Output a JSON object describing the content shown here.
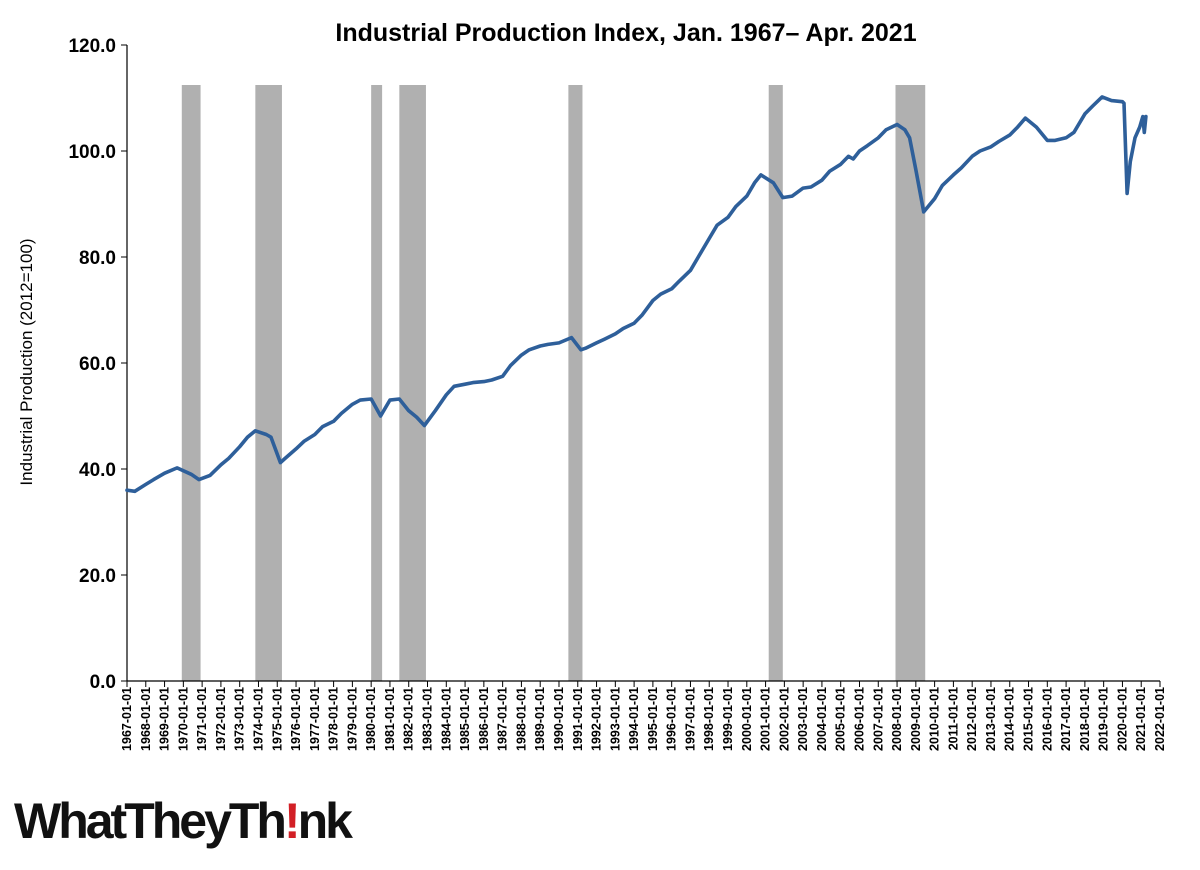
{
  "logo": {
    "before": "WhatTheyTh",
    "bang": "!",
    "after": "nk",
    "colors": {
      "text": "#111111",
      "accent": "#d21f26"
    }
  },
  "chart_data": {
    "type": "line",
    "title": "Industrial Production Index, Jan. 1967– Apr. 2021",
    "ylabel": "Industrial Production (2012=100)",
    "xlabel": "",
    "ylim": [
      0,
      120
    ],
    "xlim": [
      1967,
      2022
    ],
    "y_ticks": [
      "0.0",
      "20.0",
      "40.0",
      "60.0",
      "80.0",
      "100.0",
      "120.0"
    ],
    "x_ticks": [
      "1967-01-01",
      "1968-01-01",
      "1969-01-01",
      "1970-01-01",
      "1971-01-01",
      "1972-01-01",
      "1973-01-01",
      "1974-01-01",
      "1975-01-01",
      "1976-01-01",
      "1977-01-01",
      "1978-01-01",
      "1979-01-01",
      "1980-01-01",
      "1981-01-01",
      "1982-01-01",
      "1983-01-01",
      "1984-01-01",
      "1985-01-01",
      "1986-01-01",
      "1987-01-01",
      "1988-01-01",
      "1989-01-01",
      "1990-01-01",
      "1991-01-01",
      "1992-01-01",
      "1993-01-01",
      "1994-01-01",
      "1995-01-01",
      "1996-01-01",
      "1997-01-01",
      "1998-01-01",
      "1999-01-01",
      "2000-01-01",
      "2001-01-01",
      "2002-01-01",
      "2003-01-01",
      "2004-01-01",
      "2005-01-01",
      "2006-01-01",
      "2007-01-01",
      "2008-01-01",
      "2009-01-01",
      "2010-01-01",
      "2011-01-01",
      "2012-01-01",
      "2013-01-01",
      "2014-01-01",
      "2015-01-01",
      "2016-01-01",
      "2017-01-01",
      "2018-01-01",
      "2019-01-01",
      "2020-01-01",
      "2021-01-01",
      "2022-01-01"
    ],
    "grid": false,
    "legend": "none",
    "colors": {
      "line": "#2e5f9a",
      "recession": "#b0b0b0"
    },
    "recessions": [
      {
        "start": "1969-12",
        "end": "1970-11"
      },
      {
        "start": "1973-11",
        "end": "1975-03"
      },
      {
        "start": "1980-01",
        "end": "1980-07"
      },
      {
        "start": "1981-07",
        "end": "1982-11"
      },
      {
        "start": "1990-07",
        "end": "1991-03"
      },
      {
        "start": "2001-03",
        "end": "2001-11"
      },
      {
        "start": "2007-12",
        "end": "2009-06"
      }
    ],
    "series": [
      {
        "x": [
          "1967-01",
          "1967-06",
          "1968-01",
          "1968-06",
          "1969-01",
          "1969-09",
          "1970-06",
          "1970-11",
          "1971-06",
          "1972-01",
          "1972-06",
          "1973-01",
          "1973-06",
          "1973-11",
          "1974-06",
          "1974-09",
          "1975-03",
          "1975-06",
          "1976-01",
          "1976-06",
          "1977-01",
          "1977-06",
          "1978-01",
          "1978-06",
          "1979-01",
          "1979-06",
          "1980-01",
          "1980-07",
          "1981-01",
          "1981-07",
          "1982-01",
          "1982-06",
          "1982-11",
          "1983-06",
          "1984-01",
          "1984-06",
          "1985-01",
          "1985-06",
          "1986-01",
          "1986-06",
          "1987-01",
          "1987-06",
          "1988-01",
          "1988-06",
          "1989-01",
          "1989-06",
          "1990-01",
          "1990-09",
          "1991-03",
          "1991-06",
          "1992-01",
          "1992-06",
          "1993-01",
          "1993-06",
          "1994-01",
          "1994-06",
          "1995-01",
          "1995-06",
          "1996-01",
          "1996-06",
          "1997-01",
          "1997-06",
          "1998-01",
          "1998-06",
          "1999-01",
          "1999-06",
          "2000-01",
          "2000-06",
          "2000-10",
          "2001-06",
          "2001-12",
          "2002-06",
          "2003-01",
          "2003-06",
          "2004-01",
          "2004-06",
          "2005-01",
          "2005-06",
          "2005-09",
          "2006-01",
          "2006-06",
          "2007-01",
          "2007-06",
          "2008-01",
          "2008-06",
          "2008-09",
          "2009-01",
          "2009-06",
          "2010-01",
          "2010-06",
          "2011-01",
          "2011-06",
          "2012-01",
          "2012-06",
          "2013-01",
          "2013-06",
          "2014-01",
          "2014-06",
          "2014-11",
          "2015-06",
          "2016-01",
          "2016-06",
          "2017-01",
          "2017-06",
          "2018-01",
          "2018-06",
          "2018-12",
          "2019-06",
          "2020-01",
          "2020-02",
          "2020-04",
          "2020-06",
          "2020-09",
          "2020-12",
          "2021-02",
          "2021-03",
          "2021-04"
        ],
        "values": [
          36.0,
          35.8,
          37.1,
          38.0,
          39.2,
          40.2,
          39.0,
          38.0,
          38.8,
          40.8,
          42.0,
          44.2,
          46.0,
          47.2,
          46.5,
          46.0,
          41.2,
          42.0,
          43.8,
          45.2,
          46.5,
          48.0,
          49.0,
          50.5,
          52.2,
          53.0,
          53.2,
          50.0,
          53.0,
          53.2,
          51.0,
          49.8,
          48.2,
          51.0,
          54.0,
          55.6,
          56.0,
          56.3,
          56.5,
          56.8,
          57.5,
          59.5,
          61.5,
          62.5,
          63.2,
          63.5,
          63.8,
          64.8,
          62.5,
          62.8,
          63.8,
          64.5,
          65.5,
          66.5,
          67.5,
          69.0,
          71.8,
          73.0,
          74.0,
          75.5,
          77.5,
          80.0,
          83.5,
          86.0,
          87.5,
          89.5,
          91.5,
          94.0,
          95.5,
          94.0,
          91.2,
          91.5,
          93.0,
          93.2,
          94.5,
          96.2,
          97.5,
          99.0,
          98.5,
          100.0,
          101.0,
          102.5,
          104.0,
          105.0,
          104.0,
          102.5,
          96.5,
          88.5,
          91.0,
          93.5,
          95.5,
          96.8,
          99.0,
          100.0,
          100.8,
          101.8,
          103.0,
          104.5,
          106.2,
          104.5,
          102.0,
          102.0,
          102.5,
          103.5,
          107.0,
          108.5,
          110.2,
          109.5,
          109.3,
          109.0,
          92.0,
          98.0,
          102.5,
          104.5,
          106.5,
          103.5,
          106.5
        ]
      }
    ]
  }
}
